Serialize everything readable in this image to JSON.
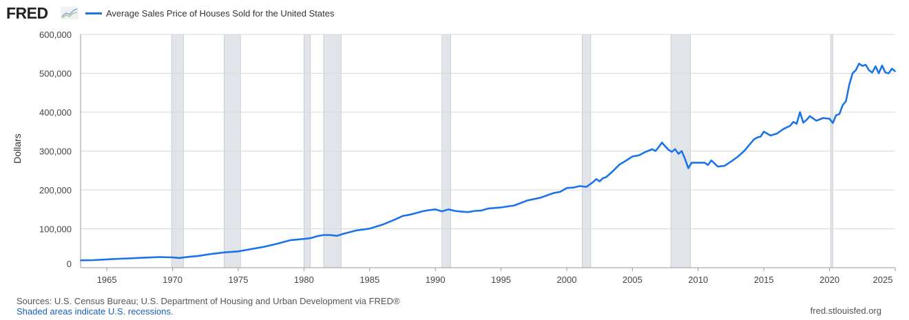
{
  "header": {
    "logo_text": "FRED",
    "logo_icon": "line-chart-icon"
  },
  "footer": {
    "sources": "Sources: U.S. Census Bureau; U.S. Department of Housing and Urban Development via FRED®",
    "shading_note": "Shaded areas indicate U.S. recessions.",
    "site": "fred.stlouisfed.org"
  },
  "colors": {
    "series": "#1a73e8",
    "recession": "#e1e5ea",
    "grid": "#d9d9d9"
  },
  "chart_data": {
    "type": "line",
    "title": "",
    "xlabel": "",
    "ylabel": "Dollars",
    "xlim": [
      1963,
      2025
    ],
    "ylim": [
      0,
      600000
    ],
    "y_ticks": [
      0,
      100000,
      200000,
      300000,
      400000,
      500000,
      600000
    ],
    "y_tick_labels": [
      "0",
      "100,000",
      "200,000",
      "300,000",
      "400,000",
      "500,000",
      "600,000"
    ],
    "x_ticks": [
      1965,
      1970,
      1975,
      1980,
      1985,
      1990,
      1995,
      2000,
      2005,
      2010,
      2015,
      2020,
      2025
    ],
    "x_tick_labels": [
      "1965",
      "1970",
      "1975",
      "1980",
      "1985",
      "1990",
      "1995",
      "2000",
      "2005",
      "2010",
      "2015",
      "2020",
      "2025"
    ],
    "grid": "horizontal",
    "legend_position": "top-left",
    "recessions": [
      [
        1969.92,
        1970.83
      ],
      [
        1973.92,
        1975.17
      ],
      [
        1980.0,
        1980.5
      ],
      [
        1981.5,
        1982.83
      ],
      [
        1990.5,
        1991.17
      ],
      [
        2001.17,
        2001.83
      ],
      [
        2007.92,
        2009.42
      ],
      [
        2020.08,
        2020.25
      ]
    ],
    "series": [
      {
        "name": "Average Sales Price of Houses Sold for the United States",
        "x": [
          1963.0,
          1964.0,
          1965.0,
          1966.0,
          1967.0,
          1968.0,
          1969.0,
          1970.0,
          1970.5,
          1971.0,
          1972.0,
          1973.0,
          1974.0,
          1975.0,
          1976.0,
          1977.0,
          1978.0,
          1979.0,
          1980.0,
          1980.5,
          1981.0,
          1981.5,
          1982.0,
          1982.5,
          1983.0,
          1984.0,
          1985.0,
          1986.0,
          1987.0,
          1987.5,
          1988.0,
          1988.5,
          1989.0,
          1989.5,
          1990.0,
          1990.5,
          1991.0,
          1991.5,
          1992.0,
          1992.5,
          1993.0,
          1993.5,
          1994.0,
          1995.0,
          1996.0,
          1997.0,
          1998.0,
          1999.0,
          1999.5,
          2000.0,
          2000.5,
          2001.0,
          2001.5,
          2002.0,
          2002.25,
          2002.5,
          2002.75,
          2003.0,
          2003.5,
          2004.0,
          2004.5,
          2005.0,
          2005.5,
          2006.0,
          2006.25,
          2006.5,
          2006.75,
          2007.0,
          2007.25,
          2007.5,
          2007.75,
          2008.0,
          2008.25,
          2008.5,
          2008.75,
          2009.0,
          2009.25,
          2009.5,
          2010.0,
          2010.5,
          2010.75,
          2011.0,
          2011.5,
          2012.0,
          2012.5,
          2013.0,
          2013.5,
          2014.0,
          2014.25,
          2014.5,
          2014.75,
          2015.0,
          2015.5,
          2016.0,
          2016.5,
          2017.0,
          2017.25,
          2017.5,
          2017.75,
          2018.0,
          2018.25,
          2018.5,
          2019.0,
          2019.5,
          2020.0,
          2020.25,
          2020.5,
          2020.75,
          2021.0,
          2021.25,
          2021.5,
          2021.75,
          2022.0,
          2022.25,
          2022.5,
          2022.75,
          2023.0,
          2023.25,
          2023.5,
          2023.75,
          2024.0,
          2024.25,
          2024.5,
          2024.75,
          2025.0
        ],
        "values": [
          19000,
          19500,
          21500,
          23000,
          24500,
          26000,
          27500,
          26500,
          25000,
          27000,
          30500,
          35500,
          39500,
          42000,
          48000,
          54000,
          62000,
          71000,
          74000,
          76000,
          81000,
          84000,
          84000,
          82000,
          87000,
          96000,
          100500,
          111000,
          125000,
          133000,
          136000,
          140000,
          145000,
          148000,
          150000,
          145000,
          150000,
          146000,
          144000,
          143000,
          146000,
          147000,
          152000,
          155000,
          160000,
          173000,
          180000,
          192000,
          195000,
          205000,
          206000,
          210000,
          208000,
          220000,
          228000,
          222000,
          230000,
          233000,
          248000,
          265000,
          275000,
          286000,
          289000,
          298000,
          301000,
          305000,
          300000,
          310000,
          322000,
          312000,
          303000,
          298000,
          305000,
          293000,
          300000,
          280000,
          256000,
          270000,
          270000,
          270000,
          264000,
          276000,
          260000,
          262000,
          273000,
          285000,
          300000,
          320000,
          330000,
          335000,
          337000,
          350000,
          340000,
          345000,
          357000,
          365000,
          375000,
          370000,
          400000,
          373000,
          380000,
          390000,
          378000,
          385000,
          383000,
          372000,
          392000,
          395000,
          418000,
          428000,
          470000,
          500000,
          508000,
          525000,
          519000,
          522000,
          508000,
          502000,
          518000,
          500000,
          520000,
          502000,
          500000,
          512000,
          505000
        ]
      }
    ]
  }
}
